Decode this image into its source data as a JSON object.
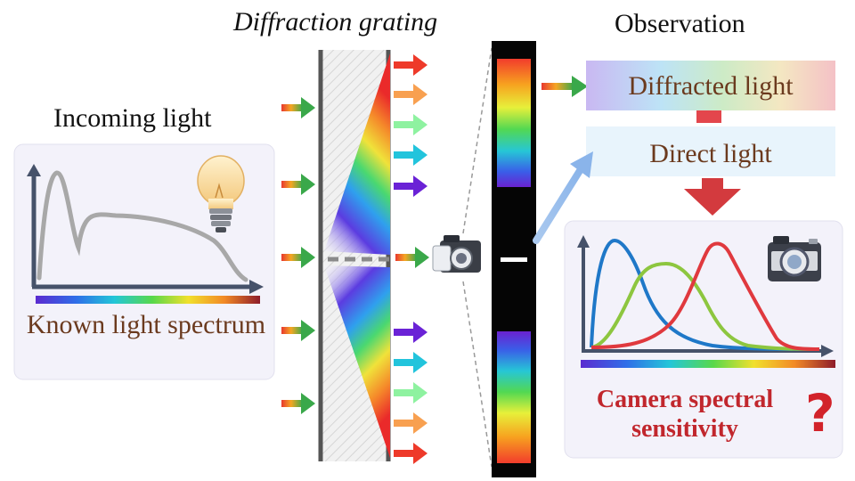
{
  "labels": {
    "grating_title": "Diffraction grating",
    "observation_title": "Observation",
    "incoming_title": "Incoming light",
    "known_spectrum": "Known light spectrum",
    "diffracted_light": "Diffracted light",
    "direct_light": "Direct light",
    "camera_sensitivity": "Camera spectral sensitivity",
    "question_mark": "?"
  },
  "icons": [
    "light-bulb-icon",
    "camera-icon",
    "camera-icon-small",
    "question-mark-icon"
  ],
  "colors": {
    "label_brown": "#6b3a1e",
    "accent_red": "#c1272d",
    "curve_gray": "#a8a8a8",
    "red_curve": "#e0393e",
    "green_curve": "#8dc63f",
    "blue_curve": "#1f78c8",
    "axis": "#46526a"
  }
}
